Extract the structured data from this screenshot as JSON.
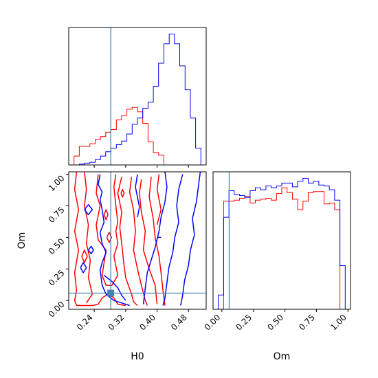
{
  "chart_data": {
    "type": "corner",
    "parameters": [
      "H0",
      "Om"
    ],
    "truths": {
      "H0": 0.282,
      "Om": 0.058
    },
    "truth_color": "#4682b4",
    "series": [
      {
        "name": "",
        "color": "#ff0000"
      },
      {
        "name": "",
        "color": "#0000ff"
      }
    ],
    "histograms": [
      {
        "param": "H0",
        "xlim": [
          0.175,
          0.525
        ],
        "bins": [
          0.175,
          0.1885,
          0.2019,
          0.2154,
          0.2288,
          0.2423,
          0.2558,
          0.2692,
          0.2827,
          0.2962,
          0.3096,
          0.3231,
          0.3365,
          0.35,
          0.3635,
          0.3769,
          0.3904,
          0.4038,
          0.4173,
          0.4308,
          0.4442,
          0.4577,
          0.4712,
          0.4846,
          0.4981,
          0.5115,
          0.525
        ],
        "counts": [
          [
            0,
            10,
            21,
            21,
            24,
            29,
            32,
            37,
            40,
            51,
            56,
            63,
            65,
            60,
            47,
            26,
            14,
            11,
            0,
            0,
            0,
            0,
            0,
            0,
            0,
            0
          ],
          [
            0,
            0,
            1,
            2,
            3,
            6,
            10,
            15,
            19,
            23,
            27,
            35,
            46,
            53,
            64,
            71,
            89,
            115,
            137,
            148,
            137,
            112,
            85,
            53,
            19,
            0
          ]
        ]
      },
      {
        "param": "Om",
        "xlim": [
          -0.07,
          1.02
        ],
        "bins": [
          -0.07,
          -0.0281,
          0.0138,
          0.0557,
          0.0977,
          0.1396,
          0.1815,
          0.2235,
          0.2654,
          0.3073,
          0.3492,
          0.3912,
          0.4331,
          0.475,
          0.5169,
          0.5588,
          0.6008,
          0.6427,
          0.6846,
          0.7265,
          0.7685,
          0.8104,
          0.8523,
          0.8942,
          0.9362,
          0.9781,
          1.02
        ],
        "counts": [
          [
            0,
            0,
            114,
            114,
            115,
            117,
            119,
            112,
            115,
            116,
            117,
            115,
            122,
            128,
            123,
            116,
            105,
            114,
            123,
            124,
            124,
            111,
            112,
            105,
            0,
            0
          ],
          [
            0,
            15,
            97,
            125,
            121,
            120,
            118,
            125,
            128,
            126,
            130,
            128,
            130,
            133,
            133,
            129,
            135,
            138,
            133,
            135,
            131,
            130,
            126,
            115,
            46,
            0
          ]
        ]
      }
    ],
    "joint": {
      "x": "H0",
      "y": "Om",
      "xlim": [
        0.175,
        0.525
      ],
      "ylim": [
        -0.07,
        1.02
      ],
      "contours": [
        {
          "series": 0,
          "paths": [
            [
              [
                0.22,
                -0.02
              ],
              [
                0.235,
                0.05
              ],
              [
                0.225,
                0.18
              ],
              [
                0.23,
                0.32
              ],
              [
                0.22,
                0.45
              ],
              [
                0.225,
                0.6
              ],
              [
                0.215,
                0.75
              ],
              [
                0.22,
                0.88
              ],
              [
                0.215,
                1.02
              ]
            ],
            [
              [
                0.195,
                1.02
              ],
              [
                0.19,
                0.88
              ],
              [
                0.2,
                0.72
              ],
              [
                0.19,
                0.55
              ],
              [
                0.2,
                0.4
              ],
              [
                0.19,
                0.22
              ],
              [
                0.195,
                0.08
              ],
              [
                0.19,
                0.0
              ],
              [
                0.195,
                -0.04
              ],
              [
                0.235,
                -0.04
              ],
              [
                0.25,
                -0.03
              ],
              [
                0.26,
                0.02
              ],
              [
                0.275,
                0.05
              ],
              [
                0.29,
                0.02
              ],
              [
                0.3,
                -0.03
              ],
              [
                0.32,
                -0.04
              ]
            ],
            [
              [
                0.25,
                1.0
              ],
              [
                0.245,
                0.85
              ],
              [
                0.255,
                0.75
              ],
              [
                0.245,
                0.6
              ],
              [
                0.25,
                0.48
              ],
              [
                0.27,
                0.4
              ],
              [
                0.265,
                0.3
              ],
              [
                0.26,
                0.2
              ],
              [
                0.27,
                0.12
              ],
              [
                0.285,
                0.12
              ],
              [
                0.3,
                0.2
              ],
              [
                0.29,
                0.35
              ],
              [
                0.3,
                0.45
              ],
              [
                0.295,
                0.55
              ],
              [
                0.3,
                0.62
              ],
              [
                0.295,
                0.75
              ],
              [
                0.29,
                0.9
              ],
              [
                0.295,
                1.0
              ]
            ],
            [
              [
                0.31,
                0.98
              ],
              [
                0.3,
                0.85
              ],
              [
                0.31,
                0.7
              ],
              [
                0.305,
                0.58
              ],
              [
                0.31,
                0.45
              ],
              [
                0.315,
                0.3
              ],
              [
                0.32,
                0.18
              ],
              [
                0.335,
                0.05
              ],
              [
                0.34,
                -0.01
              ],
              [
                0.35,
                -0.04
              ]
            ],
            [
              [
                0.335,
                0.98
              ],
              [
                0.33,
                0.86
              ],
              [
                0.34,
                0.72
              ],
              [
                0.345,
                0.55
              ],
              [
                0.34,
                0.4
              ],
              [
                0.35,
                0.25
              ],
              [
                0.36,
                0.12
              ],
              [
                0.37,
                0.0
              ],
              [
                0.375,
                -0.04
              ]
            ],
            [
              [
                0.36,
                0.96
              ],
              [
                0.355,
                0.85
              ],
              [
                0.36,
                0.7
              ],
              [
                0.37,
                0.55
              ],
              [
                0.365,
                0.4
              ],
              [
                0.38,
                0.25
              ],
              [
                0.395,
                0.12
              ],
              [
                0.4,
                -0.03
              ]
            ],
            [
              [
                0.385,
                0.98
              ],
              [
                0.38,
                0.82
              ],
              [
                0.39,
                0.65
              ],
              [
                0.395,
                0.5
              ],
              [
                0.405,
                0.35
              ],
              [
                0.41,
                0.22
              ],
              [
                0.415,
                0.08
              ],
              [
                0.42,
                -0.04
              ]
            ],
            [
              [
                0.405,
                1.0
              ],
              [
                0.4,
                0.88
              ],
              [
                0.41,
                0.72
              ],
              [
                0.4,
                0.6
              ]
            ],
            [
              [
                0.208,
                0.35
              ],
              [
                0.215,
                0.3
              ],
              [
                0.222,
                0.35
              ],
              [
                0.215,
                0.4
              ],
              [
                0.208,
                0.35
              ]
            ],
            [
              [
                0.272,
                0.5
              ],
              [
                0.278,
                0.46
              ],
              [
                0.284,
                0.5
              ],
              [
                0.278,
                0.54
              ],
              [
                0.272,
                0.5
              ]
            ],
            [
              [
                0.265,
                0.68
              ],
              [
                0.27,
                0.64
              ],
              [
                0.275,
                0.68
              ],
              [
                0.27,
                0.72
              ],
              [
                0.265,
                0.68
              ]
            ],
            [
              [
                0.308,
                0.85
              ],
              [
                0.312,
                0.82
              ],
              [
                0.316,
                0.85
              ],
              [
                0.312,
                0.88
              ],
              [
                0.308,
                0.85
              ]
            ]
          ]
        },
        {
          "series": 1,
          "paths": [
            [
              [
                0.255,
                1.0
              ],
              [
                0.25,
                0.92
              ],
              [
                0.26,
                0.86
              ],
              [
                0.255,
                0.8
              ],
              [
                0.26,
                0.72
              ],
              [
                0.265,
                0.62
              ],
              [
                0.255,
                0.54
              ],
              [
                0.26,
                0.45
              ],
              [
                0.27,
                0.38
              ],
              [
                0.26,
                0.3
              ],
              [
                0.255,
                0.24
              ],
              [
                0.26,
                0.12
              ],
              [
                0.27,
                0.05
              ],
              [
                0.29,
                0.0
              ],
              [
                0.31,
                -0.02
              ],
              [
                0.33,
                -0.04
              ]
            ],
            [
              [
                0.35,
                1.0
              ],
              [
                0.345,
                0.9
              ],
              [
                0.35,
                0.82
              ],
              [
                0.355,
                0.74
              ],
              [
                0.35,
                0.66
              ]
            ],
            [
              [
                0.265,
                0.2
              ],
              [
                0.285,
                0.15
              ],
              [
                0.3,
                0.1
              ],
              [
                0.31,
                0.04
              ],
              [
                0.32,
                0.0
              ]
            ],
            [
              [
                0.42,
                1.02
              ],
              [
                0.425,
                0.9
              ],
              [
                0.42,
                0.78
              ],
              [
                0.41,
                0.66
              ],
              [
                0.405,
                0.55
              ],
              [
                0.395,
                0.42
              ],
              [
                0.385,
                0.32
              ],
              [
                0.375,
                0.22
              ],
              [
                0.37,
                0.1
              ],
              [
                0.365,
                -0.03
              ]
            ],
            [
              [
                0.465,
                1.0
              ],
              [
                0.455,
                0.88
              ],
              [
                0.45,
                0.75
              ],
              [
                0.455,
                0.62
              ],
              [
                0.445,
                0.5
              ],
              [
                0.44,
                0.38
              ],
              [
                0.43,
                0.26
              ],
              [
                0.425,
                0.14
              ],
              [
                0.42,
                0.02
              ],
              [
                0.415,
                -0.04
              ]
            ],
            [
              [
                0.51,
                1.02
              ],
              [
                0.505,
                0.9
              ],
              [
                0.5,
                0.78
              ],
              [
                0.49,
                0.65
              ],
              [
                0.495,
                0.52
              ],
              [
                0.485,
                0.4
              ],
              [
                0.48,
                0.28
              ],
              [
                0.47,
                0.16
              ],
              [
                0.465,
                0.04
              ],
              [
                0.46,
                -0.04
              ]
            ],
            [
              [
                0.215,
                0.72
              ],
              [
                0.225,
                0.68
              ],
              [
                0.235,
                0.72
              ],
              [
                0.225,
                0.76
              ],
              [
                0.215,
                0.72
              ]
            ],
            [
              [
                0.205,
                0.26
              ],
              [
                0.212,
                0.22
              ],
              [
                0.22,
                0.26
              ],
              [
                0.212,
                0.3
              ],
              [
                0.205,
                0.26
              ]
            ],
            [
              [
                0.225,
                0.4
              ],
              [
                0.232,
                0.37
              ],
              [
                0.238,
                0.4
              ],
              [
                0.232,
                0.43
              ],
              [
                0.225,
                0.4
              ]
            ],
            [
              [
                0.4,
                0.5
              ],
              [
                0.41,
                0.5
              ]
            ]
          ]
        }
      ]
    },
    "panels": [
      {
        "id": "hist-H0",
        "xticks": [
          0.24,
          0.32,
          0.4,
          0.48
        ],
        "show_x_labels": false,
        "show_y_labels": false
      },
      {
        "id": "joint-H0-Om",
        "xticks": [
          0.24,
          0.32,
          0.4,
          0.48
        ],
        "yticks": [
          0.0,
          0.25,
          0.5,
          0.75,
          1.0
        ],
        "xtick_labels": [
          "0.24",
          "0.32",
          "0.40",
          "0.48"
        ],
        "ytick_labels": [
          "0.00",
          "0.25",
          "0.50",
          "0.75",
          "1.00"
        ],
        "xlabel": "H0",
        "ylabel": "Om"
      },
      {
        "id": "hist-Om",
        "xticks": [
          0.0,
          0.25,
          0.5,
          0.75,
          1.0
        ],
        "xtick_labels": [
          "0.00",
          "0.25",
          "0.50",
          "0.75",
          "1.00"
        ],
        "xlabel": "Om"
      }
    ]
  }
}
